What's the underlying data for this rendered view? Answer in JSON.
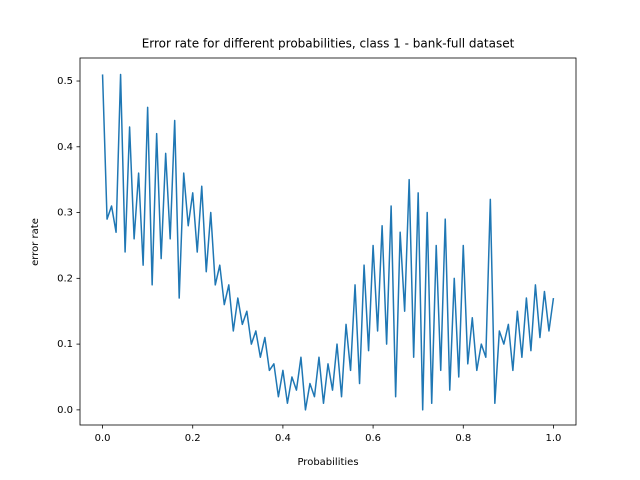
{
  "chart_data": {
    "type": "line",
    "title": "Error rate for different probabilities, class 1 - bank-full dataset",
    "x_label": "Probabilities",
    "y_label": "error rate",
    "x": [
      0,
      0.01,
      0.02,
      0.03,
      0.04,
      0.05,
      0.06,
      0.07,
      0.08,
      0.09,
      0.1,
      0.11,
      0.12,
      0.13,
      0.14,
      0.15,
      0.16,
      0.17,
      0.18,
      0.19,
      0.2,
      0.21,
      0.22,
      0.23,
      0.24,
      0.25,
      0.26,
      0.27,
      0.28,
      0.29,
      0.3,
      0.31,
      0.32,
      0.33,
      0.34,
      0.35,
      0.36,
      0.37,
      0.38,
      0.39,
      0.4,
      0.41,
      0.42,
      0.43,
      0.44,
      0.45,
      0.46,
      0.47,
      0.48,
      0.49,
      0.5,
      0.51,
      0.52,
      0.53,
      0.54,
      0.55,
      0.56,
      0.57,
      0.58,
      0.59,
      0.6,
      0.61,
      0.62,
      0.63,
      0.64,
      0.65,
      0.66,
      0.67,
      0.68,
      0.69,
      0.7,
      0.71,
      0.72,
      0.73,
      0.74,
      0.75,
      0.76,
      0.77,
      0.78,
      0.79,
      0.8,
      0.81,
      0.82,
      0.83,
      0.84,
      0.85,
      0.86,
      0.87,
      0.88,
      0.89,
      0.9,
      0.91,
      0.92,
      0.93,
      0.94,
      0.95,
      0.96,
      0.97,
      0.98,
      0.99,
      1
    ],
    "series": [
      {
        "name": "error rate",
        "color": "#1f77b4",
        "values": [
          0.51,
          0.29,
          0.31,
          0.27,
          0.51,
          0.24,
          0.43,
          0.26,
          0.36,
          0.22,
          0.46,
          0.19,
          0.42,
          0.23,
          0.39,
          0.26,
          0.44,
          0.17,
          0.36,
          0.28,
          0.33,
          0.24,
          0.34,
          0.21,
          0.3,
          0.19,
          0.22,
          0.16,
          0.19,
          0.12,
          0.17,
          0.13,
          0.15,
          0.1,
          0.12,
          0.08,
          0.11,
          0.06,
          0.07,
          0.02,
          0.06,
          0.01,
          0.05,
          0.03,
          0.08,
          0.0,
          0.04,
          0.02,
          0.08,
          0.01,
          0.07,
          0.03,
          0.1,
          0.02,
          0.13,
          0.06,
          0.19,
          0.04,
          0.22,
          0.09,
          0.25,
          0.12,
          0.28,
          0.1,
          0.31,
          0.02,
          0.27,
          0.15,
          0.35,
          0.08,
          0.33,
          0.0,
          0.3,
          0.01,
          0.25,
          0.06,
          0.29,
          0.03,
          0.2,
          0.05,
          0.25,
          0.07,
          0.14,
          0.06,
          0.1,
          0.08,
          0.32,
          0.01,
          0.12,
          0.1,
          0.13,
          0.06,
          0.15,
          0.08,
          0.17,
          0.09,
          0.19,
          0.11,
          0.18,
          0.12,
          0.17
        ]
      }
    ],
    "xlim": [
      -0.05,
      1.05
    ],
    "xticks": [
      {
        "value": 0,
        "label": "0.0"
      },
      0.2,
      0.4,
      0.6,
      0.8,
      {
        "value": 1,
        "label": "1.0"
      }
    ],
    "ylim": [
      -0.023,
      0.535
    ],
    "yticks": [
      {
        "value": 0,
        "label": "0.0"
      },
      0.1,
      0.2,
      0.3,
      0.4,
      0.5
    ]
  }
}
